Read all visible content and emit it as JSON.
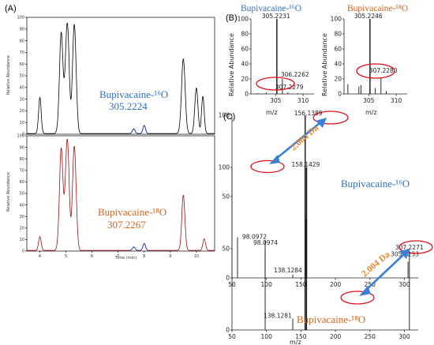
{
  "panels": {
    "a": "(A)",
    "b": "(B)",
    "c": "(C)"
  },
  "annotations": {
    "a_top_name": "Bupivacaine-¹⁶O",
    "a_top_mass": "305.2224",
    "a_bot_name": "Bupivacaine-¹⁸O",
    "a_bot_mass": "307.2267",
    "b_left_title": "Bupivacaine-¹⁶O",
    "b_right_title": "Bupivacaine-¹⁸O",
    "c_top_name": "Bupivacaine-¹⁶O",
    "c_bot_name": "Bupivacaine-¹⁸O",
    "delta_1": "2.004 Da",
    "delta_2": "2.004 Da"
  },
  "colors": {
    "trace_16O": "#000000",
    "trace_18O": "#a01010",
    "accent_blue": "#2f6fbf",
    "accent_orange": "#d7641c",
    "circle": "#e0101a",
    "arrow": "#3b7fd6"
  },
  "chart_data": [
    {
      "id": "A_top",
      "type": "line",
      "xlabel": "",
      "ylabel": "Relative Abundance",
      "xlim": [
        3.5,
        10.7
      ],
      "ylim": [
        0,
        100
      ],
      "yticks": [
        0,
        10,
        20,
        30,
        40,
        50,
        60,
        70,
        80,
        90,
        100
      ],
      "series": [
        {
          "peaks": [
            [
              4.0,
              31,
              0.05
            ],
            [
              4.82,
              86,
              0.07
            ],
            [
              5.05,
              96,
              0.07
            ],
            [
              5.32,
              93,
              0.07
            ],
            [
              7.6,
              4,
              0.05
            ],
            [
              8.0,
              7,
              0.05
            ],
            [
              9.5,
              64,
              0.07
            ],
            [
              10.0,
              39,
              0.06
            ],
            [
              10.25,
              32,
              0.05
            ]
          ]
        }
      ]
    },
    {
      "id": "A_bottom",
      "type": "line",
      "xlabel": "Time (min)",
      "ylabel": "Relative Abundance",
      "xlim": [
        3.5,
        10.7
      ],
      "ylim": [
        0,
        100
      ],
      "xticks": [
        4,
        5,
        6,
        7,
        8,
        9,
        10
      ],
      "yticks": [
        0,
        10,
        20,
        30,
        40,
        50,
        60,
        70,
        80,
        90,
        100
      ],
      "series": [
        {
          "peaks": [
            [
              4.0,
              12,
              0.05
            ],
            [
              4.82,
              88,
              0.07
            ],
            [
              5.05,
              98,
              0.07
            ],
            [
              5.32,
              90,
              0.07
            ],
            [
              7.6,
              3,
              0.05
            ],
            [
              8.0,
              6,
              0.05
            ],
            [
              9.5,
              48,
              0.06
            ],
            [
              10.3,
              10,
              0.05
            ]
          ]
        }
      ]
    },
    {
      "id": "B_left",
      "type": "bar",
      "title": "Bupivacaine-¹⁶O",
      "xlabel": "m/z",
      "ylabel": "Relative Abundance",
      "xlim": [
        300.5,
        312
      ],
      "ylim": [
        0,
        100
      ],
      "xticks": [
        305,
        310
      ],
      "yticks": [
        0,
        20,
        40,
        60,
        80,
        100
      ],
      "sticks": [
        [
          301.7,
          1
        ],
        [
          303.3,
          2
        ],
        [
          305.2231,
          100
        ],
        [
          306.2262,
          20
        ],
        [
          307.2279,
          2
        ],
        [
          309.0,
          1
        ]
      ],
      "labels": [
        "305.2231",
        "306.2262",
        "307.2279"
      ]
    },
    {
      "id": "B_right",
      "type": "bar",
      "title": "Bupivacaine-¹⁸O",
      "xlabel": "m/z",
      "ylabel": "Relative Abundance",
      "xlim": [
        300.5,
        312
      ],
      "ylim": [
        0,
        100
      ],
      "xticks": [
        305,
        310
      ],
      "yticks": [
        0,
        20,
        40,
        60,
        80,
        100
      ],
      "sticks": [
        [
          301.2,
          13
        ],
        [
          303.2,
          10
        ],
        [
          303.6,
          12
        ],
        [
          305.2246,
          100
        ],
        [
          306.2,
          8
        ],
        [
          307.228,
          22
        ],
        [
          308.2,
          4
        ]
      ],
      "labels": [
        "305.2246",
        "307.2280"
      ]
    },
    {
      "id": "C_top",
      "type": "bar",
      "title": "",
      "xlabel": "",
      "ylabel": "",
      "xlim": [
        50,
        320
      ],
      "ylim": [
        0,
        100
      ],
      "xticks": [
        50,
        100,
        150,
        200,
        250,
        300
      ],
      "yticks": [
        0,
        50,
        100
      ],
      "sticks": [
        [
          58,
          25
        ],
        [
          98.0974,
          18
        ],
        [
          138.1284,
          2
        ],
        [
          156.1389,
          100
        ],
        [
          158.1429,
          68
        ],
        [
          305.2233,
          10
        ]
      ],
      "labels": [
        "156.1389",
        "158.1429",
        "98.0974",
        "138.1284",
        "305.2233"
      ]
    },
    {
      "id": "C_bottom",
      "type": "bar",
      "title": "",
      "xlabel": "m/z",
      "ylabel": "",
      "xlim": [
        50,
        320
      ],
      "ylim": [
        0,
        100
      ],
      "xticks": [
        50,
        100,
        150,
        200,
        250,
        300
      ],
      "yticks": [
        0,
        50,
        100
      ],
      "sticks": [
        [
          98.0972,
          55
        ],
        [
          138.1281,
          7
        ],
        [
          156,
          100
        ],
        [
          158,
          68
        ],
        [
          307.2271,
          48
        ]
      ],
      "labels": [
        "98.0972",
        "138.1281",
        "307.2271"
      ]
    }
  ]
}
